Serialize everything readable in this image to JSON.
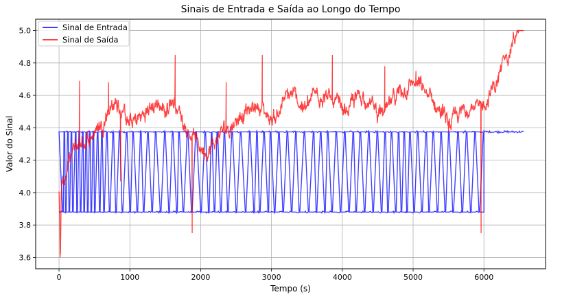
{
  "chart_data": {
    "type": "line",
    "title": "Sinais de Entrada e Saída ao Longo do Tempo",
    "xlabel": "Tempo (s)",
    "ylabel": "Valor do Sinal",
    "xlim": [
      -330,
      6870
    ],
    "ylim": [
      3.53,
      5.07
    ],
    "x_ticks": [
      0,
      1000,
      2000,
      3000,
      4000,
      5000,
      6000
    ],
    "x_tick_labels": [
      "0",
      "1000",
      "2000",
      "3000",
      "4000",
      "5000",
      "6000"
    ],
    "y_ticks": [
      3.6,
      3.8,
      4.0,
      4.2,
      4.4,
      4.6,
      4.8,
      5.0
    ],
    "y_tick_labels": [
      "3.6",
      "3.8",
      "4.0",
      "4.2",
      "4.4",
      "4.6",
      "4.8",
      "5.0"
    ],
    "grid": true,
    "legend_position": "top-left",
    "series": [
      {
        "name": "Sinal de Entrada",
        "color": "#0000ff",
        "style": "square-wave",
        "low": 3.88,
        "high": 4.375,
        "switch_times": [
          0,
          60,
          80,
          100,
          130,
          150,
          180,
          200,
          240,
          260,
          290,
          310,
          340,
          360,
          390,
          410,
          440,
          460,
          490,
          510,
          550,
          580,
          610,
          640,
          680,
          720,
          770,
          810,
          860,
          900,
          960,
          1010,
          1050,
          1110,
          1160,
          1200,
          1260,
          1320,
          1370,
          1440,
          1500,
          1560,
          1610,
          1670,
          1700,
          1760,
          1820,
          1880,
          1940,
          2010,
          2070,
          2120,
          2160,
          2200,
          2240,
          2290,
          2340,
          2390,
          2450,
          2510,
          2570,
          2640,
          2700,
          2760,
          2800,
          2840,
          2900,
          2960,
          2990,
          3050,
          3110,
          3170,
          3230,
          3290,
          3350,
          3400,
          3470,
          3530,
          3600,
          3640,
          3700,
          3760,
          3800,
          3860,
          3920,
          3980,
          4040,
          4100,
          4160,
          4200,
          4260,
          4320,
          4380,
          4440,
          4500,
          4560,
          4610,
          4650,
          4700,
          4760,
          4800,
          4840,
          4880,
          4920,
          4960,
          5020,
          5070,
          5130,
          5190,
          5230,
          5290,
          5350,
          5400,
          5460,
          5510,
          5570,
          5640,
          5700,
          5760,
          5820,
          5880,
          5940,
          6000
        ],
        "flat_tail": {
          "x": [
            6000,
            6560
          ],
          "y": 4.375
        }
      },
      {
        "name": "Sinal de Saída",
        "color": "#ff0000",
        "style": "noisy-line",
        "x": [
          0,
          20,
          30,
          50,
          100,
          200,
          300,
          400,
          500,
          600,
          700,
          800,
          900,
          1000,
          1100,
          1200,
          1300,
          1400,
          1500,
          1600,
          1700,
          1800,
          1900,
          2000,
          2100,
          2200,
          2300,
          2400,
          2500,
          2600,
          2700,
          2800,
          2900,
          3000,
          3100,
          3200,
          3300,
          3400,
          3500,
          3600,
          3700,
          3800,
          3900,
          4000,
          4100,
          4200,
          4300,
          4400,
          4500,
          4600,
          4700,
          4800,
          4900,
          5000,
          5100,
          5200,
          5300,
          5400,
          5500,
          5600,
          5700,
          5800,
          5900,
          5960,
          6000,
          6100,
          6200,
          6300,
          6400,
          6500,
          6560
        ],
        "y": [
          4.0,
          3.6,
          3.95,
          4.05,
          4.12,
          4.25,
          4.3,
          4.32,
          4.38,
          4.42,
          4.52,
          4.55,
          4.5,
          4.42,
          4.45,
          4.48,
          4.52,
          4.55,
          4.5,
          4.58,
          4.5,
          4.4,
          4.35,
          4.28,
          4.26,
          4.3,
          4.38,
          4.4,
          4.45,
          4.5,
          4.5,
          4.55,
          4.5,
          4.45,
          4.5,
          4.58,
          4.6,
          4.55,
          4.52,
          4.6,
          4.62,
          4.58,
          4.55,
          4.5,
          4.52,
          4.58,
          4.6,
          4.55,
          4.5,
          4.48,
          4.55,
          4.62,
          4.65,
          4.68,
          4.65,
          4.6,
          4.55,
          4.5,
          4.42,
          4.45,
          4.5,
          4.55,
          4.52,
          4.5,
          4.55,
          4.62,
          4.7,
          4.82,
          4.93,
          5.0,
          5.0
        ],
        "spikes": [
          [
            15,
            3.6
          ],
          [
            290,
            4.69
          ],
          [
            700,
            4.68
          ],
          [
            870,
            4.07
          ],
          [
            1640,
            4.85
          ],
          [
            1880,
            3.75
          ],
          [
            2360,
            4.68
          ],
          [
            2870,
            4.85
          ],
          [
            3860,
            4.85
          ],
          [
            4600,
            4.78
          ],
          [
            5040,
            4.75
          ],
          [
            5960,
            3.75
          ]
        ]
      }
    ]
  }
}
